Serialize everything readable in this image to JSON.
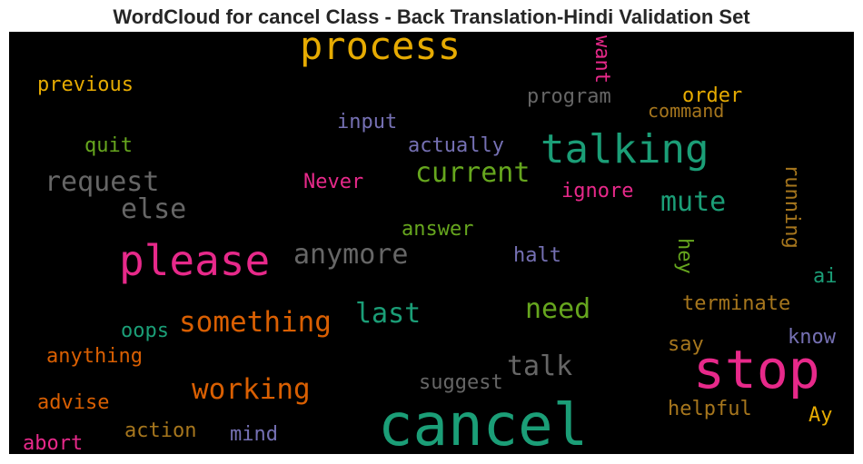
{
  "chart_data": {
    "type": "wordcloud",
    "title": "WordCloud for cancel Class - Back Translation-Hindi Validation Set",
    "background": "#000000",
    "words": [
      {
        "text": "cancel",
        "color": "#1b9e77"
      },
      {
        "text": "stop",
        "color": "#e7298a"
      },
      {
        "text": "please",
        "color": "#e7298a"
      },
      {
        "text": "process",
        "color": "#e6ab02"
      },
      {
        "text": "talking",
        "color": "#1b9e77"
      },
      {
        "text": "something",
        "color": "#d95f02"
      },
      {
        "text": "working",
        "color": "#d95f02"
      },
      {
        "text": "current",
        "color": "#66a61e"
      },
      {
        "text": "anymore",
        "color": "#666666"
      },
      {
        "text": "request",
        "color": "#666666"
      },
      {
        "text": "need",
        "color": "#66a61e"
      },
      {
        "text": "last",
        "color": "#1b9e77"
      },
      {
        "text": "talk",
        "color": "#666666"
      },
      {
        "text": "else",
        "color": "#666666"
      },
      {
        "text": "mute",
        "color": "#1b9e77"
      },
      {
        "text": "previous",
        "color": "#e6ab02"
      },
      {
        "text": "program",
        "color": "#666666"
      },
      {
        "text": "order",
        "color": "#e6ab02"
      },
      {
        "text": "command",
        "color": "#a6761d"
      },
      {
        "text": "input",
        "color": "#7570b3"
      },
      {
        "text": "actually",
        "color": "#7570b3"
      },
      {
        "text": "quit",
        "color": "#66a61e"
      },
      {
        "text": "Never",
        "color": "#e7298a"
      },
      {
        "text": "ignore",
        "color": "#e7298a"
      },
      {
        "text": "answer",
        "color": "#66a61e"
      },
      {
        "text": "halt",
        "color": "#7570b3"
      },
      {
        "text": "terminate",
        "color": "#a6761d"
      },
      {
        "text": "oops",
        "color": "#1b9e77"
      },
      {
        "text": "anything",
        "color": "#d95f02"
      },
      {
        "text": "suggest",
        "color": "#666666"
      },
      {
        "text": "say",
        "color": "#a6761d"
      },
      {
        "text": "know",
        "color": "#7570b3"
      },
      {
        "text": "advise",
        "color": "#d95f02"
      },
      {
        "text": "helpful",
        "color": "#a6761d"
      },
      {
        "text": "action",
        "color": "#a6761d"
      },
      {
        "text": "mind",
        "color": "#7570b3"
      },
      {
        "text": "abort",
        "color": "#e7298a"
      },
      {
        "text": "Ay",
        "color": "#e6ab02"
      },
      {
        "text": "ai",
        "color": "#1b9e77"
      },
      {
        "text": "want",
        "color": "#e7298a"
      },
      {
        "text": "running",
        "color": "#a6761d"
      },
      {
        "text": "hey",
        "color": "#66a61e"
      }
    ]
  }
}
